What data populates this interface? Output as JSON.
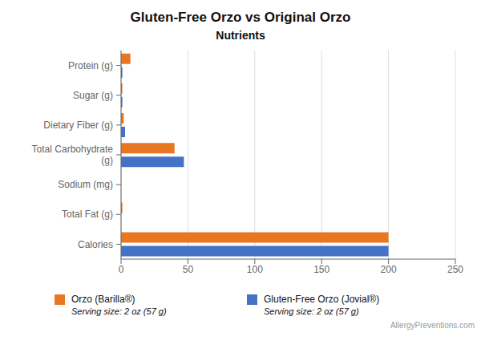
{
  "chart_data": {
    "type": "bar",
    "orientation": "horizontal",
    "title": "Gluten-Free Orzo vs Original Orzo",
    "subtitle": "Nutrients",
    "categories": [
      "Protein (g)",
      "Sugar (g)",
      "Dietary Fiber (g)",
      "Total Carbohydrate\n(g)",
      "Sodium (mg)",
      "Total Fat (g)",
      "Calories"
    ],
    "series": [
      {
        "name": "Orzo (Barilla®)",
        "color": "#E87722",
        "values": [
          7,
          1,
          2,
          40,
          0,
          1,
          200
        ]
      },
      {
        "name": "Gluten-Free Orzo (Jovial®)",
        "color": "#4472C4",
        "values": [
          1,
          1,
          3,
          47,
          0,
          0,
          200
        ]
      }
    ],
    "xlim": [
      0,
      250
    ],
    "xticks": [
      0,
      50,
      100,
      150,
      200,
      250
    ],
    "grid": true,
    "legend": "bottom",
    "annotations": [
      "Serving size: 2 oz (57 g)",
      "Serving size: 2 oz (57 g)",
      "AllergyPreventions.com"
    ]
  }
}
